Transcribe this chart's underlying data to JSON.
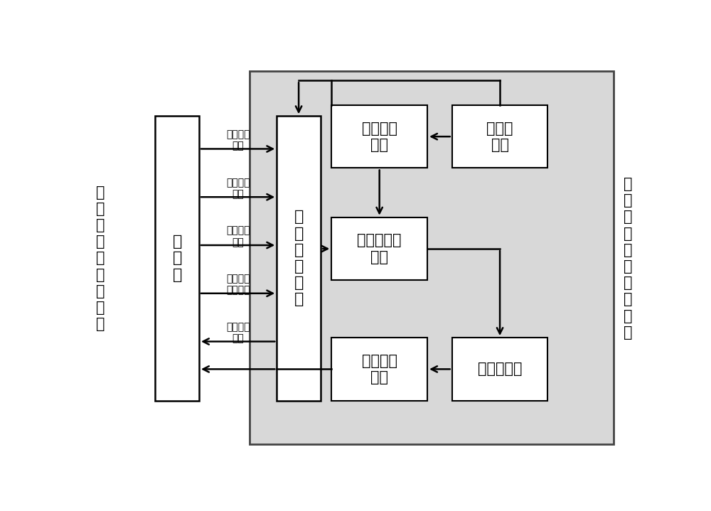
{
  "white": "#ffffff",
  "black": "#000000",
  "gray_bg": "#d8d8d8",
  "title_left": "人机\n交互\n系统\n主\n系统",
  "title_right": "可\n编\n程\n工\n艺\n解\n析\n子\n系\n统",
  "box_db_line1": "数据",
  "box_db_line2": "库",
  "box_dm_line1": "数",
  "box_dm_line2": "据",
  "box_dm_line3": "管",
  "box_dm_line4": "理",
  "box_dm_line5": "模",
  "box_dm_line6": "块",
  "box_syntax_line1": "语法检查",
  "box_syntax_line2": "模块",
  "box_editor_line1": "编辑器",
  "box_editor_line2": "模块",
  "box_script_line1": "脚本预处理",
  "box_script_line2": "模块",
  "box_interp": "解释器模块",
  "box_output_line1": "结果输出",
  "box_output_line2": "模块",
  "arrow_label_1_1": "产品设计",
  "arrow_label_1_2": "数据",
  "arrow_label_2_1": "产品下料",
  "arrow_label_2_2": "数据",
  "arrow_label_3_1": "设备机器",
  "arrow_label_3_2": "参数",
  "arrow_label_4_1": "设备生产",
  "arrow_label_4_2": "工艺参数",
  "arrow_label_5_1": "叠片工艺",
  "arrow_label_5_2": "数据"
}
